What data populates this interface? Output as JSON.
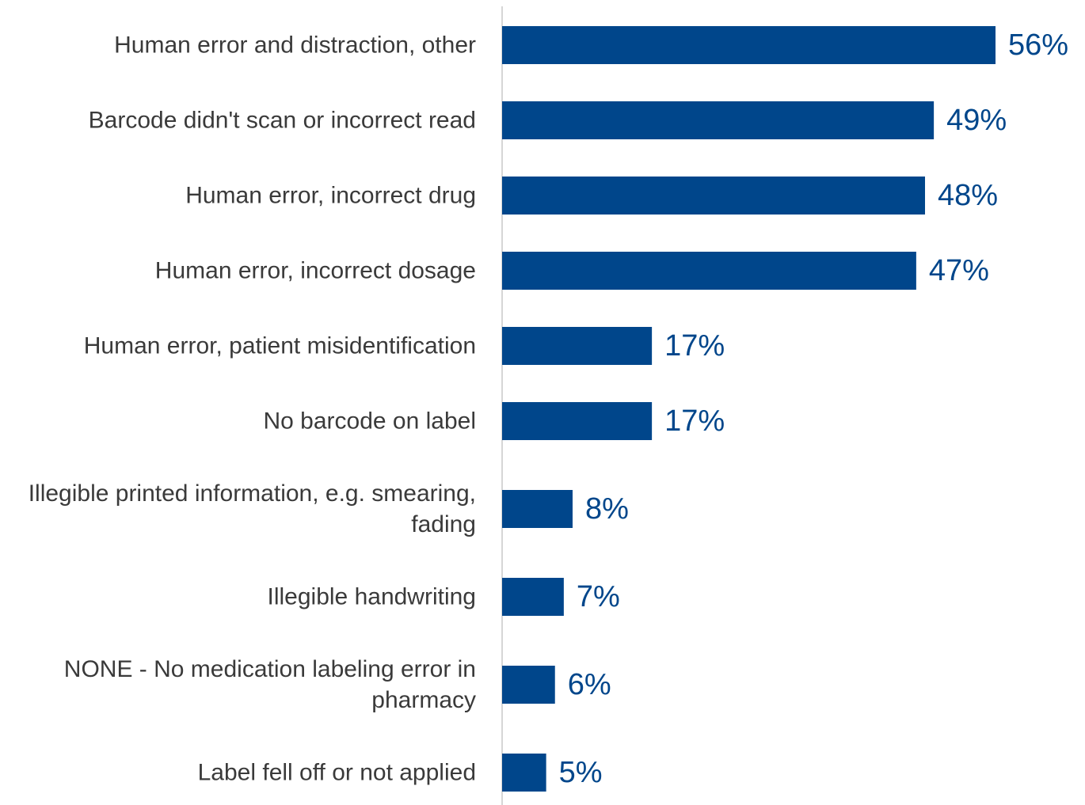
{
  "chart_data": {
    "type": "bar",
    "orientation": "horizontal",
    "categories": [
      "Human error and distraction, other",
      "Barcode didn't scan or incorrect read",
      "Human error, incorrect drug",
      "Human error, incorrect dosage",
      "Human error, patient misidentification",
      "No barcode on label",
      "Illegible printed information, e.g. smearing, fading",
      "Illegible handwriting",
      "NONE - No medication labeling error in pharmacy",
      "Label fell off or not applied"
    ],
    "category_lines": [
      [
        "Human error and distraction, other"
      ],
      [
        "Barcode didn't scan or incorrect read"
      ],
      [
        "Human error, incorrect drug"
      ],
      [
        "Human error, incorrect dosage"
      ],
      [
        "Human error, patient misidentification"
      ],
      [
        "No barcode on label"
      ],
      [
        "Illegible printed information, e.g. smearing,",
        "fading"
      ],
      [
        "Illegible handwriting"
      ],
      [
        "NONE - No medication labeling error in",
        "pharmacy"
      ],
      [
        "Label fell off or not applied"
      ]
    ],
    "values": [
      56,
      49,
      48,
      47,
      17,
      17,
      8,
      7,
      6,
      5
    ],
    "value_labels": [
      "56%",
      "49%",
      "48%",
      "47%",
      "17%",
      "17%",
      "8%",
      "7%",
      "6%",
      "5%"
    ],
    "unit": "%",
    "xlim": [
      0,
      56
    ],
    "grid": false,
    "legend": "none",
    "bar_color": "#00468b",
    "label_color": "#3a3a3a",
    "axis_color": "#c8c8c8"
  }
}
